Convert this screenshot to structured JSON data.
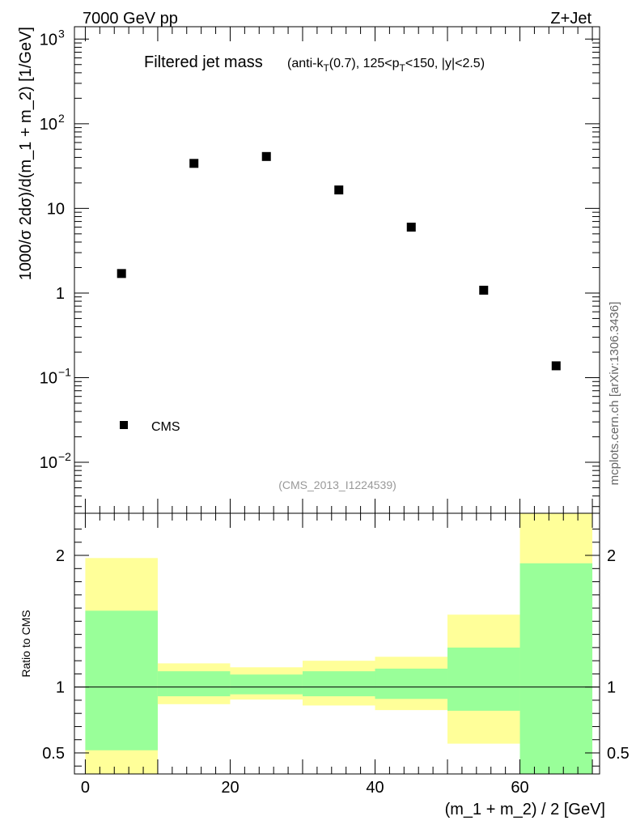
{
  "header": {
    "energy_label": "7000 GeV pp",
    "process_label": "Z+Jet"
  },
  "side_label": "mcplots.cern.ch [arXiv:1306.3436]",
  "colors": {
    "data_marker": "#000000",
    "band_outer": "#ffff99",
    "band_inner": "#99ff99",
    "axis": "#000000",
    "analysis_label": "#999999"
  },
  "chart_data": [
    {
      "type": "scatter",
      "panel": "main",
      "title_main": "Filtered jet mass",
      "title_sub": "(anti-k_T(0.7), 125<p_T<150, |y|<2.5)",
      "ylabel": "1000/σ 2dσ)/d(m_1 + m_2) [1/GeV]",
      "yscale": "log",
      "xlim": [
        -1.5,
        71
      ],
      "ylim": [
        0.0025,
        1400
      ],
      "yticks": [
        {
          "value": 0.01,
          "base": "10",
          "exp": "−2"
        },
        {
          "value": 0.1,
          "base": "10",
          "exp": "−1"
        },
        {
          "value": 1,
          "base": "1",
          "exp": ""
        },
        {
          "value": 10,
          "base": "10",
          "exp": ""
        },
        {
          "value": 100,
          "base": "10",
          "exp": "2"
        },
        {
          "value": 1000,
          "base": "10",
          "exp": "3"
        }
      ],
      "series": [
        {
          "name": "CMS",
          "x": [
            5,
            15,
            25,
            35,
            45,
            55,
            65
          ],
          "y": [
            1.7,
            34,
            41,
            16.5,
            6.0,
            1.08,
            0.138
          ]
        }
      ],
      "legend": [
        {
          "label": "CMS",
          "position": "bottom-left"
        }
      ],
      "analysis_label": "(CMS_2013_I1224539)"
    },
    {
      "type": "bar",
      "panel": "ratio",
      "ylabel": "Ratio to CMS",
      "xlabel": "(m_1 + m_2) / 2 [GeV]",
      "xlim": [
        -1.5,
        71
      ],
      "ylim": [
        0.34,
        2.32
      ],
      "yticks": [
        {
          "value": 0.5,
          "label": "0.5"
        },
        {
          "value": 1,
          "label": "1"
        },
        {
          "value": 2,
          "label": "2"
        }
      ],
      "xticks": [
        {
          "value": 0,
          "label": "0"
        },
        {
          "value": 20,
          "label": "20"
        },
        {
          "value": 40,
          "label": "40"
        },
        {
          "value": 60,
          "label": "60"
        }
      ],
      "reference_line": 1.0,
      "bins": [
        {
          "lo": 0,
          "hi": 10,
          "outer": [
            0.34,
            1.98
          ],
          "inner": [
            0.52,
            1.58
          ]
        },
        {
          "lo": 10,
          "hi": 20,
          "outer": [
            0.87,
            1.18
          ],
          "inner": [
            0.93,
            1.12
          ]
        },
        {
          "lo": 20,
          "hi": 30,
          "outer": [
            0.905,
            1.15
          ],
          "inner": [
            0.945,
            1.095
          ]
        },
        {
          "lo": 30,
          "hi": 40,
          "outer": [
            0.86,
            1.2
          ],
          "inner": [
            0.93,
            1.12
          ]
        },
        {
          "lo": 40,
          "hi": 50,
          "outer": [
            0.825,
            1.23
          ],
          "inner": [
            0.91,
            1.14
          ]
        },
        {
          "lo": 50,
          "hi": 60,
          "outer": [
            0.57,
            1.55
          ],
          "inner": [
            0.82,
            1.3
          ]
        },
        {
          "lo": 60,
          "hi": 70,
          "outer": [
            0.34,
            2.32
          ],
          "inner": [
            0.34,
            1.94
          ]
        }
      ]
    }
  ]
}
